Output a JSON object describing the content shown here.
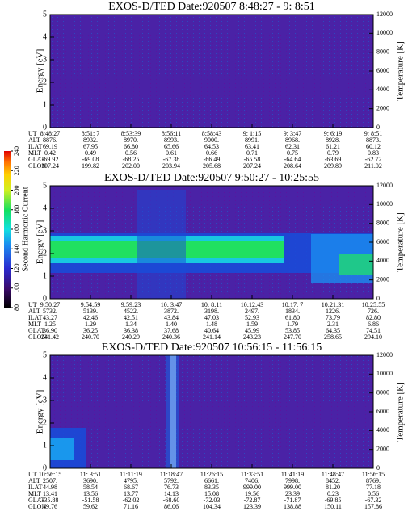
{
  "chart_data": [
    {
      "type": "spectrogram",
      "title": "EXOS-D/TED   Date:920507   8:48:27 - 9: 8:51",
      "ylabel": "Energy [eV]",
      "y2label": "Temperature [K]",
      "ylim": [
        0,
        5
      ],
      "yticks": [
        0,
        1,
        2,
        3,
        4,
        5
      ],
      "y2lim": [
        0,
        12000
      ],
      "y2ticks": [
        0,
        2000,
        4000,
        6000,
        8000,
        10000,
        12000
      ],
      "table": {
        "row_labels": [
          "UT",
          "ALT",
          "ILAT",
          "MLT",
          "GLAT",
          "GLON"
        ],
        "rows": [
          [
            "8:48:27",
            "8:51: 7",
            "8:53:39",
            "8:56:11",
            "8:58:43",
            "9: 1:15",
            "9: 3:47",
            "9: 6:19",
            "9: 8:51"
          ],
          [
            "8876.",
            "8932.",
            "8970.",
            "8993.",
            "9000.",
            "8991.",
            "8968.",
            "8928.",
            "8873."
          ],
          [
            "69.19",
            "67.95",
            "66.80",
            "65.66",
            "64.53",
            "63.41",
            "62.31",
            "61.21",
            "60.12"
          ],
          [
            "0.42",
            "0.49",
            "0.56",
            "0.61",
            "0.66",
            "0.71",
            "0.75",
            "0.79",
            "0.83"
          ],
          [
            "-69.92",
            "-69.08",
            "-68.25",
            "-67.38",
            "-66.49",
            "-65.58",
            "-64.64",
            "-63.69",
            "-62.72"
          ],
          [
            "197.24",
            "199.82",
            "202.00",
            "203.94",
            "205.68",
            "207.24",
            "208.64",
            "209.89",
            "211.02"
          ]
        ]
      }
    },
    {
      "type": "spectrogram",
      "title": "EXOS-D/TED   Date:920507   9:50:27 - 10:25:55",
      "ylabel": "Energy [eV]",
      "y2label": "Temperature [K]",
      "ylim": [
        0,
        5
      ],
      "yticks": [
        0,
        1,
        2,
        3,
        4,
        5
      ],
      "y2lim": [
        0,
        12000
      ],
      "y2ticks": [
        0,
        2000,
        4000,
        6000,
        8000,
        10000,
        12000
      ],
      "table": {
        "row_labels": [
          "UT",
          "ALT",
          "ILAT",
          "MLT",
          "GLAT",
          "GLON"
        ],
        "rows": [
          [
            "9:50:27",
            "9:54:59",
            "9:59:23",
            "10: 3:47",
            "10: 8:11",
            "10:12:43",
            "10:17: 7",
            "10:21:31",
            "10:25:55"
          ],
          [
            "5732.",
            "5139.",
            "4522.",
            "3872.",
            "3198.",
            "2497.",
            "1834.",
            "1226.",
            "726."
          ],
          [
            "43.27",
            "42.46",
            "42.51",
            "43.84",
            "47.03",
            "52.93",
            "61.80",
            "73.79",
            "82.80"
          ],
          [
            "1.25",
            "1.29",
            "1.34",
            "1.40",
            "1.48",
            "1.59",
            "1.79",
            "2.31",
            "6.86"
          ],
          [
            "36.90",
            "36.25",
            "36.38",
            "37.68",
            "40.64",
            "45.99",
            "53.85",
            "64.35",
            "74.51"
          ],
          [
            "241.42",
            "240.70",
            "240.29",
            "240.36",
            "241.14",
            "243.23",
            "247.70",
            "258.65",
            "294.10"
          ]
        ]
      }
    },
    {
      "type": "spectrogram",
      "title": "EXOS-D/TED   Date:920507   10:56:15 - 11:56:15",
      "ylabel": "Energy [eV]",
      "y2label": "Temperature [K]",
      "ylim": [
        0,
        5
      ],
      "yticks": [
        0,
        1,
        2,
        3,
        4,
        5
      ],
      "y2lim": [
        0,
        12000
      ],
      "y2ticks": [
        0,
        2000,
        4000,
        6000,
        8000,
        10000,
        12000
      ],
      "table": {
        "row_labels": [
          "UT",
          "ALT",
          "ILAT",
          "MLT",
          "GLAT",
          "GLON"
        ],
        "rows": [
          [
            "10:56:15",
            "11: 3:51",
            "11:11:19",
            "11:18:47",
            "11:26:15",
            "11:33:51",
            "11:41:19",
            "11:48:47",
            "11:56:15"
          ],
          [
            "2507.",
            "3690.",
            "4795.",
            "5792.",
            "6661.",
            "7406.",
            "7998.",
            "8452.",
            "8769."
          ],
          [
            "44.98",
            "58.54",
            "68.67",
            "76.73",
            "83.35",
            "999.00",
            "999.00",
            "81.20",
            "77.18"
          ],
          [
            "13.41",
            "13.56",
            "13.77",
            "14.13",
            "15.08",
            "19.56",
            "23.39",
            "0.23",
            "0.56"
          ],
          [
            "-35.88",
            "-51.58",
            "-62.02",
            "-68.60",
            "-72.03",
            "-72.87",
            "-71.87",
            "-69.85",
            "-67.32"
          ],
          [
            "49.76",
            "59.62",
            "71.16",
            "86.06",
            "104.34",
            "123.39",
            "138.88",
            "150.11",
            "157.86"
          ]
        ]
      }
    }
  ],
  "colorbar": {
    "label": "Second Harmonic Current",
    "lim": [
      80,
      240
    ],
    "ticks": [
      80,
      100,
      120,
      140,
      160,
      180,
      200,
      220,
      240
    ]
  }
}
